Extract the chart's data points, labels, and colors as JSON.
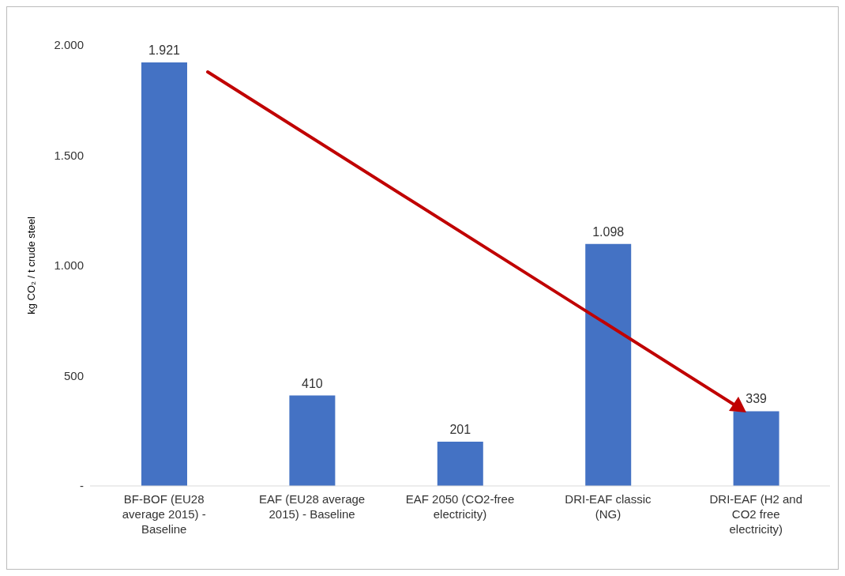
{
  "chart_data": {
    "type": "bar",
    "ylabel": "kg CO₂ / t crude steel",
    "categories": [
      "BF-BOF (EU28 average 2015) - Baseline",
      "EAF (EU28 average 2015) - Baseline",
      "EAF 2050 (CO2-free electricity)",
      "DRI-EAF classic (NG)",
      "DRI-EAF (H2 and CO2 free electricity)"
    ],
    "values": [
      1921,
      410,
      201,
      1098,
      339
    ],
    "value_labels": [
      "1.921",
      "410",
      "201",
      "1.098",
      "339"
    ],
    "color": "#4472c4",
    "ylim": [
      0,
      2000
    ],
    "yticks": [
      {
        "value": 0,
        "label": "-"
      },
      {
        "value": 500,
        "label": "500"
      },
      {
        "value": 1000,
        "label": "1.000"
      },
      {
        "value": 1500,
        "label": "1.500"
      },
      {
        "value": 2000,
        "label": "2.000"
      }
    ],
    "grid": false,
    "legend": false
  }
}
